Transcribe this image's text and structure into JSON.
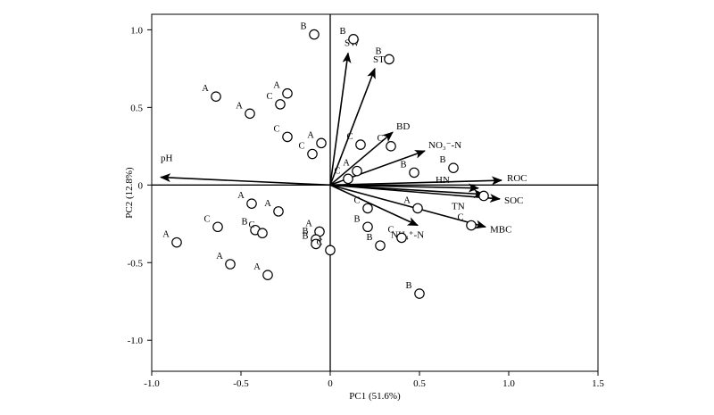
{
  "chart_data": {
    "type": "scatter",
    "title": "",
    "xlabel": "PC1 (51.6%)",
    "ylabel": "PC2 (12.8%)",
    "xlim": [
      -1.0,
      1.5
    ],
    "ylim": [
      -1.2,
      1.1
    ],
    "xticks": [
      "-1.0",
      "-0.5",
      "0",
      "0.5",
      "1.0",
      "1.5"
    ],
    "yticks": [
      "-1.0",
      "-0.5",
      "0",
      "0.5",
      "1.0"
    ],
    "xtick_values": [
      -1.0,
      -0.5,
      0,
      0.5,
      1.0,
      1.5
    ],
    "ytick_values": [
      -1.0,
      -0.5,
      0,
      0.5,
      1.0
    ],
    "grid": false,
    "reference_lines": {
      "x": 0,
      "y": 0
    },
    "vectors": [
      {
        "name": "SW",
        "x": 0.1,
        "y": 0.85
      },
      {
        "name": "ST",
        "x": 0.25,
        "y": 0.75
      },
      {
        "name": "BD",
        "x": 0.35,
        "y": 0.34
      },
      {
        "name": "NO₃⁻-N",
        "x": 0.53,
        "y": 0.22
      },
      {
        "name": "ROC",
        "x": 0.96,
        "y": 0.03
      },
      {
        "name": "HN",
        "x": 0.83,
        "y": -0.02
      },
      {
        "name": "TN",
        "x": 0.86,
        "y": -0.06
      },
      {
        "name": "SOC",
        "x": 0.95,
        "y": -0.09
      },
      {
        "name": "MBC",
        "x": 0.87,
        "y": -0.27
      },
      {
        "name": "NH₄⁺-N",
        "x": 0.49,
        "y": -0.26
      },
      {
        "name": "pH",
        "x": -0.95,
        "y": 0.05
      }
    ],
    "points": [
      {
        "label": "B",
        "x": -0.09,
        "y": 0.97
      },
      {
        "label": "B",
        "x": 0.13,
        "y": 0.94
      },
      {
        "label": "B",
        "x": 0.33,
        "y": 0.81
      },
      {
        "label": "A",
        "x": -0.64,
        "y": 0.57
      },
      {
        "label": "A",
        "x": -0.24,
        "y": 0.59
      },
      {
        "label": "C",
        "x": -0.28,
        "y": 0.52
      },
      {
        "label": "A",
        "x": -0.45,
        "y": 0.46
      },
      {
        "label": "C",
        "x": -0.24,
        "y": 0.31
      },
      {
        "label": "A",
        "x": -0.05,
        "y": 0.27
      },
      {
        "label": "C",
        "x": -0.1,
        "y": 0.2
      },
      {
        "label": "C",
        "x": 0.17,
        "y": 0.26
      },
      {
        "label": "C",
        "x": 0.34,
        "y": 0.25
      },
      {
        "label": "A",
        "x": 0.15,
        "y": 0.09
      },
      {
        "label": "C",
        "x": 0.1,
        "y": 0.04
      },
      {
        "label": "B",
        "x": 0.47,
        "y": 0.08
      },
      {
        "label": "B",
        "x": 0.69,
        "y": 0.11
      },
      {
        "label": "B",
        "x": 0.86,
        "y": -0.07
      },
      {
        "label": "A",
        "x": 0.49,
        "y": -0.15
      },
      {
        "label": "C",
        "x": 0.79,
        "y": -0.26
      },
      {
        "label": "C",
        "x": 0.21,
        "y": -0.15
      },
      {
        "label": "B",
        "x": 0.21,
        "y": -0.27
      },
      {
        "label": "C",
        "x": 0.4,
        "y": -0.34
      },
      {
        "label": "B",
        "x": 0.28,
        "y": -0.39
      },
      {
        "label": "B",
        "x": 0.5,
        "y": -0.7
      },
      {
        "label": "A",
        "x": -0.06,
        "y": -0.3
      },
      {
        "label": "B",
        "x": -0.08,
        "y": -0.35
      },
      {
        "label": "B",
        "x": -0.08,
        "y": -0.38
      },
      {
        "label": "C",
        "x": 0.0,
        "y": -0.42
      },
      {
        "label": "A",
        "x": -0.44,
        "y": -0.12
      },
      {
        "label": "A",
        "x": -0.29,
        "y": -0.17
      },
      {
        "label": "C",
        "x": -0.63,
        "y": -0.27
      },
      {
        "label": "B",
        "x": -0.42,
        "y": -0.29
      },
      {
        "label": "C",
        "x": -0.38,
        "y": -0.31
      },
      {
        "label": "A",
        "x": -0.86,
        "y": -0.37
      },
      {
        "label": "A",
        "x": -0.56,
        "y": -0.51
      },
      {
        "label": "A",
        "x": -0.35,
        "y": -0.58
      }
    ]
  }
}
